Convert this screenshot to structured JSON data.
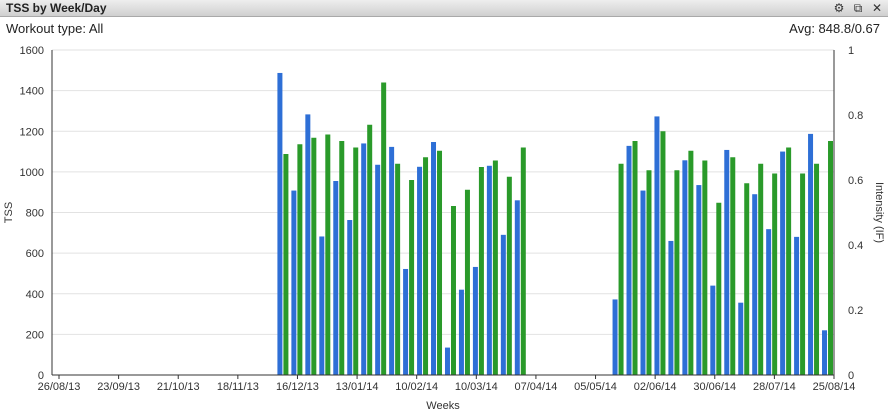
{
  "window": {
    "title": "TSS by Week/Day"
  },
  "icons": {
    "settings": "gear-icon",
    "popout": "popout-icon",
    "close": "close-icon"
  },
  "info": {
    "workout_type": "Workout type: All",
    "avg": "Avg: 848.8/0.67"
  },
  "chart_data": {
    "type": "bar",
    "title": "",
    "xlabel": "Weeks",
    "ylabel": "TSS",
    "y2label": "Intensity (IF)",
    "ylim": [
      0,
      1600
    ],
    "y2lim": [
      0,
      1
    ],
    "yticks": [
      "0",
      "200",
      "400",
      "600",
      "800",
      "1000",
      "1200",
      "1400",
      "1600"
    ],
    "y2ticks": [
      "0",
      "0.2",
      "0.4",
      "0.6",
      "0.8",
      "1"
    ],
    "xticks": [
      "26/08/13",
      "23/09/13",
      "21/10/13",
      "18/11/13",
      "16/12/13",
      "13/01/14",
      "10/02/14",
      "10/03/14",
      "07/04/14",
      "05/05/14",
      "02/06/14",
      "30/06/14",
      "28/07/14",
      "25/08/14"
    ],
    "grid": true,
    "colors": {
      "tss": "#2e6fd6",
      "intensity": "#2a9a2a"
    },
    "series": [
      {
        "axis": "left",
        "values": [
          0,
          0,
          0,
          0,
          0,
          0,
          0,
          0,
          0,
          0,
          0,
          0,
          0,
          0,
          0,
          0,
          1487,
          908,
          1283,
          682,
          955,
          763,
          1140,
          1035,
          1123,
          522,
          1025,
          1147,
          135,
          420,
          532,
          1030,
          690,
          860,
          0,
          0,
          0,
          0,
          0,
          0,
          372,
          1128,
          908,
          1273,
          660,
          1057,
          935,
          440,
          1108,
          356,
          890,
          718,
          1100,
          680,
          1187,
          220
        ]
      },
      {
        "axis": "right",
        "values": [
          0,
          0,
          0,
          0,
          0,
          0,
          0,
          0,
          0,
          0,
          0,
          0,
          0,
          0,
          0,
          0,
          0.68,
          0.71,
          0.73,
          0.74,
          0.72,
          0.7,
          0.77,
          0.9,
          0.65,
          0.6,
          0.67,
          0.69,
          0.52,
          0.57,
          0.64,
          0.66,
          0.61,
          0.7,
          0,
          0,
          0,
          0,
          0,
          0,
          0.65,
          0.72,
          0.63,
          0.75,
          0.63,
          0.69,
          0.66,
          0.53,
          0.67,
          0.59,
          0.65,
          0.62,
          0.7,
          0.62,
          0.65,
          0.72
        ]
      }
    ]
  }
}
